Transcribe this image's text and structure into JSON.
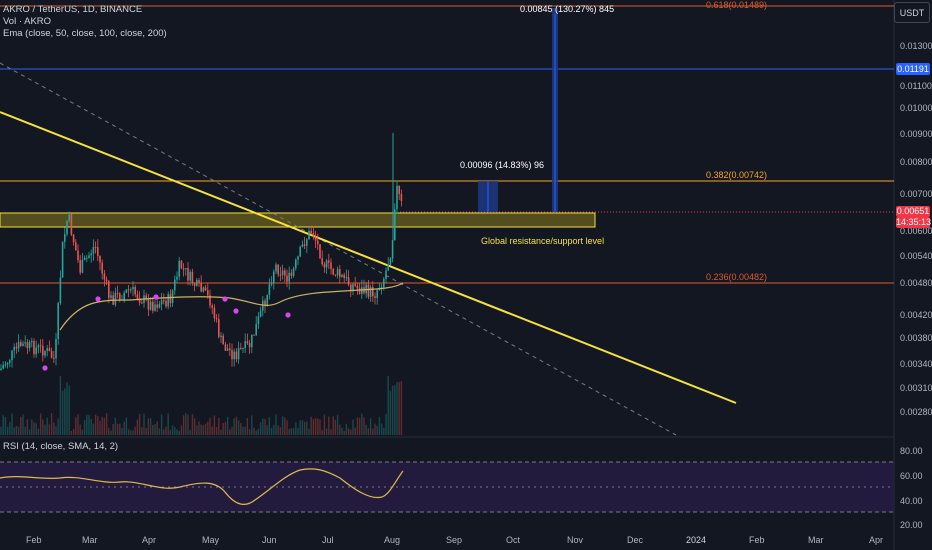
{
  "legend": {
    "symbol_line": "AKRO / TetherUS, 1D, BINANCE",
    "vol_line": "Vol · AKRO",
    "ema_line": "Ema (close, 50, close, 100, close, 200)"
  },
  "rsi_legend": "RSI (14, close, SMA, 14, 2)",
  "currency_button": "USDT",
  "price_axis": [
    "0.01300",
    "0.01100",
    "0.01000",
    "0.00900",
    "0.00800",
    "0.00700",
    "0.00600",
    "0.00540",
    "0.00480",
    "0.00420",
    "0.00380",
    "0.00340",
    "0.00310",
    "0.00280"
  ],
  "rsi_axis": [
    "80.00",
    "60.00",
    "40.00",
    "20.00"
  ],
  "time_axis": [
    "Feb",
    "Mar",
    "Apr",
    "May",
    "Jun",
    "Jul",
    "Aug",
    "Sep",
    "Oct",
    "Nov",
    "Dec",
    "2024",
    "Feb",
    "Mar",
    "Apr"
  ],
  "price_tags": {
    "blue_line": "0.01191",
    "current_price": "0.00651",
    "countdown": "14:35:13"
  },
  "annotations": {
    "measure_big": "0.00845 (130.27%) 845",
    "measure_small": "0.00096 (14.83%) 96",
    "fib_618": "0.618(0.01489)",
    "fib_382": "0.382(0.00742)",
    "fib_236": "0.236(0.00482)",
    "zone_label": "Global resistance/support level"
  },
  "colors": {
    "background": "#131722",
    "candle_up": "#26a69a",
    "candle_down": "#ef5350",
    "trendline": "#f5e23a",
    "fib_line": "#e05a2a",
    "blue_line": "#2962ff",
    "measure_fill": "#1e3a8a",
    "ema": "#c8b464",
    "rsi": "#e0b94a",
    "rsi_band": "#2a1e4a",
    "current_tag": "#f23645"
  }
}
